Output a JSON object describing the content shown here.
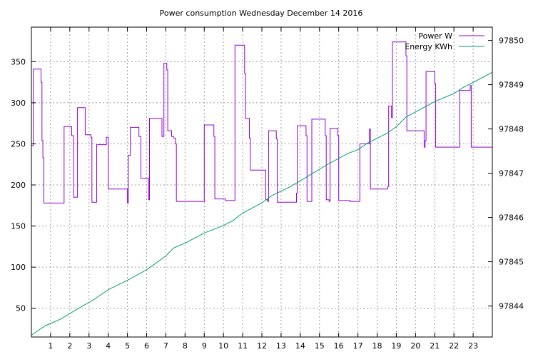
{
  "chart_data": {
    "type": "line",
    "title": "Power consumption Wednesday December 14 2016",
    "xlim": [
      0,
      24
    ],
    "x_ticks": [
      "1",
      "2",
      "3",
      "4",
      "5",
      "6",
      "7",
      "8",
      "9",
      "10",
      "11",
      "12",
      "13",
      "14",
      "15",
      "16",
      "17",
      "18",
      "19",
      "20",
      "21",
      "22",
      "23"
    ],
    "y_left": {
      "lim": [
        15,
        392
      ],
      "ticks": [
        50,
        100,
        150,
        200,
        250,
        300,
        350
      ]
    },
    "y_right": {
      "lim": [
        97843.3,
        97850.3
      ],
      "ticks": [
        97844,
        97845,
        97846,
        97847,
        97848,
        97849,
        97850
      ]
    },
    "grid": true,
    "legend_position": "top-right",
    "series": [
      {
        "name": "Power W",
        "axis": "left",
        "color": "#9400d3",
        "step": true,
        "points": [
          [
            0.0,
            248
          ],
          [
            0.1,
            341
          ],
          [
            0.5,
            341
          ],
          [
            0.5,
            325
          ],
          [
            0.55,
            254
          ],
          [
            0.6,
            233
          ],
          [
            0.65,
            178
          ],
          [
            1.7,
            178
          ],
          [
            1.7,
            271
          ],
          [
            2.1,
            271
          ],
          [
            2.1,
            260
          ],
          [
            2.2,
            185
          ],
          [
            2.4,
            185
          ],
          [
            2.4,
            294
          ],
          [
            2.8,
            294
          ],
          [
            2.8,
            261
          ],
          [
            3.0,
            261
          ],
          [
            3.1,
            258
          ],
          [
            3.15,
            179
          ],
          [
            3.4,
            179
          ],
          [
            3.4,
            249
          ],
          [
            3.9,
            249
          ],
          [
            3.9,
            258
          ],
          [
            4.0,
            258
          ],
          [
            4.0,
            195
          ],
          [
            5.0,
            195
          ],
          [
            5.0,
            178
          ],
          [
            5.05,
            236
          ],
          [
            5.15,
            270
          ],
          [
            5.6,
            270
          ],
          [
            5.6,
            259
          ],
          [
            5.7,
            208
          ],
          [
            6.1,
            208
          ],
          [
            6.1,
            182
          ],
          [
            6.15,
            281
          ],
          [
            6.8,
            281
          ],
          [
            6.8,
            259
          ],
          [
            6.9,
            348
          ],
          [
            7.0,
            348
          ],
          [
            7.05,
            340
          ],
          [
            7.1,
            266
          ],
          [
            7.2,
            266
          ],
          [
            7.3,
            259
          ],
          [
            7.4,
            257
          ],
          [
            7.5,
            250
          ],
          [
            7.55,
            180
          ],
          [
            9.05,
            180
          ],
          [
            9.0,
            273
          ],
          [
            9.5,
            273
          ],
          [
            9.5,
            259
          ],
          [
            9.55,
            183
          ],
          [
            10.1,
            183
          ],
          [
            10.1,
            181
          ],
          [
            10.6,
            181
          ],
          [
            10.6,
            370
          ],
          [
            11.1,
            370
          ],
          [
            11.1,
            336
          ],
          [
            11.15,
            281
          ],
          [
            11.35,
            281
          ],
          [
            11.35,
            257
          ],
          [
            11.4,
            218
          ],
          [
            12.2,
            218
          ],
          [
            12.2,
            182
          ],
          [
            12.3,
            180
          ],
          [
            12.35,
            266
          ],
          [
            12.75,
            266
          ],
          [
            12.75,
            256
          ],
          [
            12.8,
            179
          ],
          [
            13.8,
            179
          ],
          [
            13.8,
            190
          ],
          [
            13.85,
            272
          ],
          [
            14.3,
            272
          ],
          [
            14.3,
            260
          ],
          [
            14.35,
            180
          ],
          [
            14.5,
            180
          ],
          [
            14.6,
            280
          ],
          [
            15.3,
            280
          ],
          [
            15.3,
            260
          ],
          [
            15.35,
            182
          ],
          [
            15.5,
            180
          ],
          [
            15.55,
            269
          ],
          [
            15.95,
            269
          ],
          [
            15.95,
            260
          ],
          [
            16.0,
            181
          ],
          [
            16.6,
            181
          ],
          [
            16.6,
            180
          ],
          [
            17.1,
            180
          ],
          [
            17.1,
            250
          ],
          [
            17.6,
            250
          ],
          [
            17.6,
            268
          ],
          [
            17.65,
            195
          ],
          [
            18.55,
            195
          ],
          [
            18.55,
            198
          ],
          [
            18.6,
            296
          ],
          [
            18.7,
            296
          ],
          [
            18.75,
            282
          ],
          [
            18.8,
            374
          ],
          [
            19.45,
            374
          ],
          [
            19.5,
            357
          ],
          [
            19.55,
            266
          ],
          [
            20.4,
            266
          ],
          [
            20.45,
            246
          ],
          [
            20.5,
            254
          ],
          [
            20.55,
            338
          ],
          [
            21.0,
            338
          ],
          [
            21.0,
            323
          ],
          [
            21.05,
            246
          ],
          [
            22.3,
            246
          ],
          [
            22.3,
            315
          ],
          [
            22.85,
            315
          ],
          [
            22.85,
            321
          ],
          [
            22.9,
            246
          ],
          [
            24.0,
            246
          ]
        ]
      },
      {
        "name": "Energy KWh",
        "axis": "right",
        "color": "#009e73",
        "step": false,
        "points": [
          [
            0.0,
            97843.34
          ],
          [
            0.7,
            97843.55
          ],
          [
            1.5,
            97843.7
          ],
          [
            2.5,
            97843.96
          ],
          [
            3.2,
            97844.13
          ],
          [
            4.0,
            97844.37
          ],
          [
            5.0,
            97844.58
          ],
          [
            6.0,
            97844.82
          ],
          [
            7.0,
            97845.13
          ],
          [
            7.4,
            97845.31
          ],
          [
            8.0,
            97845.42
          ],
          [
            9.0,
            97845.65
          ],
          [
            10.0,
            97845.82
          ],
          [
            10.5,
            97845.93
          ],
          [
            11.0,
            97846.1
          ],
          [
            12.0,
            97846.33
          ],
          [
            12.5,
            97846.49
          ],
          [
            13.5,
            97846.7
          ],
          [
            14.5,
            97846.96
          ],
          [
            15.5,
            97847.22
          ],
          [
            16.5,
            97847.45
          ],
          [
            17.0,
            97847.53
          ],
          [
            17.5,
            97847.68
          ],
          [
            18.5,
            97847.9
          ],
          [
            19.0,
            97848.05
          ],
          [
            19.5,
            97848.27
          ],
          [
            20.5,
            97848.5
          ],
          [
            21.0,
            97848.62
          ],
          [
            22.0,
            97848.8
          ],
          [
            22.5,
            97848.94
          ],
          [
            23.0,
            97849.05
          ],
          [
            24.0,
            97849.28
          ]
        ]
      }
    ]
  }
}
